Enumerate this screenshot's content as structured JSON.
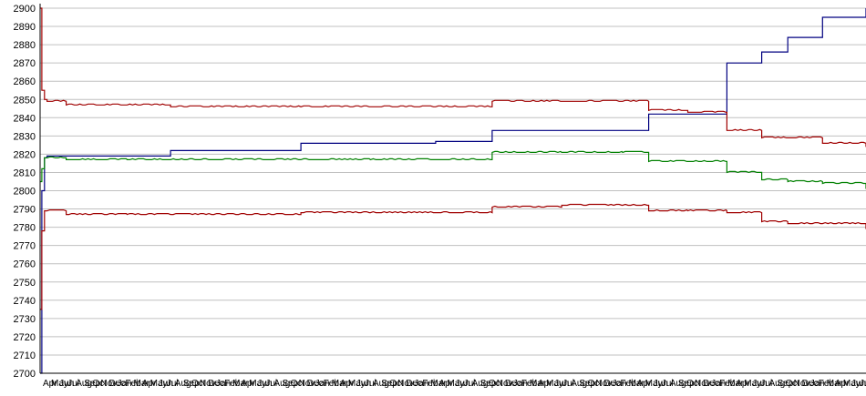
{
  "chart_data": {
    "type": "line",
    "title": "",
    "xlabel": "",
    "ylabel": "",
    "ylim": [
      2700,
      2900
    ],
    "y_ticks": [
      "2700",
      "2710",
      "2720",
      "2730",
      "2740",
      "2750",
      "2760",
      "2770",
      "2780",
      "2790",
      "2800",
      "2810",
      "2820",
      "2830",
      "2840",
      "2850",
      "2860",
      "2870",
      "2880",
      "2890",
      "2900"
    ],
    "grid": "horizontal",
    "legend": "none",
    "x_tick_labels": [
      "Apr",
      "May",
      "Jun",
      "Jul",
      "Aug",
      "Sep",
      "Oct",
      "Nov",
      "Dec",
      "Jan",
      "Feb",
      "Mar"
    ],
    "x": [
      0,
      2,
      5,
      8,
      30,
      100,
      150,
      200,
      300,
      380,
      455,
      520,
      600,
      670,
      700,
      745,
      790,
      830,
      860,
      900,
      950
    ],
    "series": [
      {
        "color": "#000080",
        "values": [
          2700,
          2800,
          2818,
          2819,
          2819,
          2819,
          2822,
          2822,
          2826,
          2826,
          2827,
          2833,
          2833,
          2833,
          2842,
          2842,
          2870,
          2876,
          2884,
          2895,
          2900
        ]
      },
      {
        "color": "#a00000",
        "values": [
          2900,
          2855,
          2850,
          2849,
          2847,
          2847,
          2846,
          2846,
          2846,
          2846,
          2846,
          2849,
          2849,
          2849,
          2844,
          2843,
          2833,
          2829,
          2829,
          2826,
          2824
        ]
      },
      {
        "color": "#008000",
        "values": [
          2805,
          2812,
          2818,
          2818,
          2817,
          2817,
          2817,
          2817,
          2817,
          2817,
          2817,
          2821,
          2821,
          2821,
          2816,
          2816,
          2810,
          2806,
          2805,
          2804,
          2801
        ]
      },
      {
        "color": "#a00000",
        "values": [
          2735,
          2778,
          2789,
          2789,
          2787,
          2787,
          2787,
          2787,
          2788,
          2788,
          2788,
          2791,
          2792,
          2792,
          2789,
          2789,
          2788,
          2783,
          2782,
          2782,
          2779
        ]
      }
    ]
  }
}
